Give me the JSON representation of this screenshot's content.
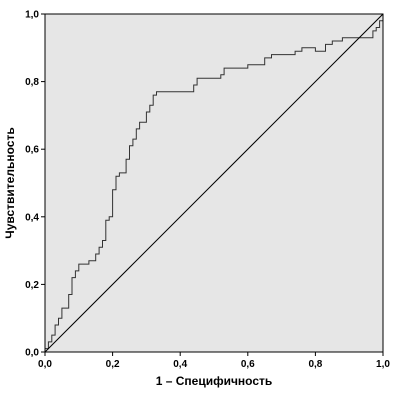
{
  "chart_data": {
    "type": "line",
    "title": "",
    "xlabel": "1 – Специфичность",
    "ylabel": "Чувствительность",
    "xlim": [
      0,
      1
    ],
    "ylim": [
      0,
      1
    ],
    "x_ticks": [
      "0,0",
      "0,2",
      "0,4",
      "0,6",
      "0,8",
      "1,0"
    ],
    "y_ticks": [
      "0,0",
      "0,2",
      "0,4",
      "0,6",
      "0,8",
      "1,0"
    ],
    "grid": false,
    "colors": {
      "plot_bg": "#e6e6e6",
      "line": "#333333",
      "axis": "#000000"
    },
    "series": [
      {
        "kind": "step",
        "points": [
          [
            0.0,
            0.0
          ],
          [
            0.0,
            0.01
          ],
          [
            0.01,
            0.01
          ],
          [
            0.01,
            0.03
          ],
          [
            0.02,
            0.03
          ],
          [
            0.02,
            0.05
          ],
          [
            0.03,
            0.05
          ],
          [
            0.03,
            0.08
          ],
          [
            0.04,
            0.08
          ],
          [
            0.04,
            0.1
          ],
          [
            0.05,
            0.1
          ],
          [
            0.05,
            0.13
          ],
          [
            0.07,
            0.13
          ],
          [
            0.07,
            0.17
          ],
          [
            0.08,
            0.17
          ],
          [
            0.08,
            0.22
          ],
          [
            0.09,
            0.22
          ],
          [
            0.09,
            0.24
          ],
          [
            0.1,
            0.24
          ],
          [
            0.1,
            0.26
          ],
          [
            0.13,
            0.26
          ],
          [
            0.13,
            0.27
          ],
          [
            0.15,
            0.27
          ],
          [
            0.15,
            0.29
          ],
          [
            0.16,
            0.29
          ],
          [
            0.16,
            0.31
          ],
          [
            0.17,
            0.31
          ],
          [
            0.17,
            0.33
          ],
          [
            0.18,
            0.33
          ],
          [
            0.18,
            0.39
          ],
          [
            0.19,
            0.39
          ],
          [
            0.19,
            0.4
          ],
          [
            0.2,
            0.4
          ],
          [
            0.2,
            0.48
          ],
          [
            0.21,
            0.48
          ],
          [
            0.21,
            0.52
          ],
          [
            0.22,
            0.52
          ],
          [
            0.22,
            0.53
          ],
          [
            0.24,
            0.53
          ],
          [
            0.24,
            0.57
          ],
          [
            0.25,
            0.57
          ],
          [
            0.25,
            0.61
          ],
          [
            0.26,
            0.61
          ],
          [
            0.26,
            0.63
          ],
          [
            0.27,
            0.63
          ],
          [
            0.27,
            0.66
          ],
          [
            0.28,
            0.66
          ],
          [
            0.28,
            0.68
          ],
          [
            0.3,
            0.68
          ],
          [
            0.3,
            0.71
          ],
          [
            0.31,
            0.71
          ],
          [
            0.31,
            0.73
          ],
          [
            0.32,
            0.73
          ],
          [
            0.32,
            0.76
          ],
          [
            0.33,
            0.76
          ],
          [
            0.33,
            0.77
          ],
          [
            0.44,
            0.77
          ],
          [
            0.44,
            0.79
          ],
          [
            0.45,
            0.79
          ],
          [
            0.45,
            0.81
          ],
          [
            0.52,
            0.81
          ],
          [
            0.52,
            0.82
          ],
          [
            0.53,
            0.82
          ],
          [
            0.53,
            0.84
          ],
          [
            0.6,
            0.84
          ],
          [
            0.6,
            0.85
          ],
          [
            0.65,
            0.85
          ],
          [
            0.65,
            0.87
          ],
          [
            0.67,
            0.87
          ],
          [
            0.67,
            0.88
          ],
          [
            0.74,
            0.88
          ],
          [
            0.74,
            0.89
          ],
          [
            0.76,
            0.89
          ],
          [
            0.76,
            0.9
          ],
          [
            0.8,
            0.9
          ],
          [
            0.8,
            0.89
          ],
          [
            0.83,
            0.89
          ],
          [
            0.83,
            0.91
          ],
          [
            0.85,
            0.91
          ],
          [
            0.85,
            0.92
          ],
          [
            0.88,
            0.92
          ],
          [
            0.88,
            0.93
          ],
          [
            0.97,
            0.93
          ],
          [
            0.97,
            0.95
          ],
          [
            0.98,
            0.95
          ],
          [
            0.98,
            0.96
          ],
          [
            0.99,
            0.96
          ],
          [
            0.99,
            0.98
          ],
          [
            1.0,
            0.98
          ],
          [
            1.0,
            1.0
          ]
        ]
      },
      {
        "kind": "reference",
        "points": [
          [
            0,
            0
          ],
          [
            1,
            1
          ]
        ]
      }
    ]
  }
}
